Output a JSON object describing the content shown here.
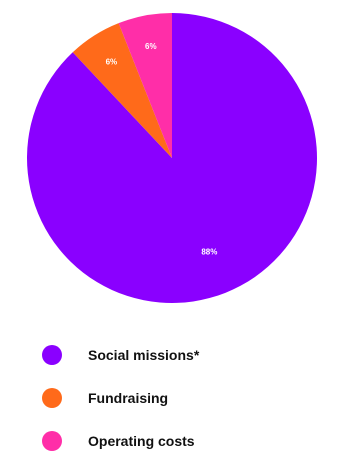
{
  "chart_data": {
    "type": "pie",
    "title": "",
    "start": "top",
    "direction": "clockwise",
    "slices": [
      {
        "name": "Social missions*",
        "value": 88,
        "label": "88%",
        "color": "#8a00ff"
      },
      {
        "name": "Fundraising",
        "value": 6,
        "label": "6%",
        "color": "#ff6a1a"
      },
      {
        "name": "Operating costs",
        "value": 6,
        "label": "6%",
        "color": "#ff2ea8"
      }
    ],
    "legend_placement": "bottom"
  },
  "legend": {
    "items": [
      {
        "label": "Social missions*",
        "color": "#8a00ff"
      },
      {
        "label": "Fundraising",
        "color": "#ff6a1a"
      },
      {
        "label": "Operating costs",
        "color": "#ff2ea8"
      }
    ]
  }
}
